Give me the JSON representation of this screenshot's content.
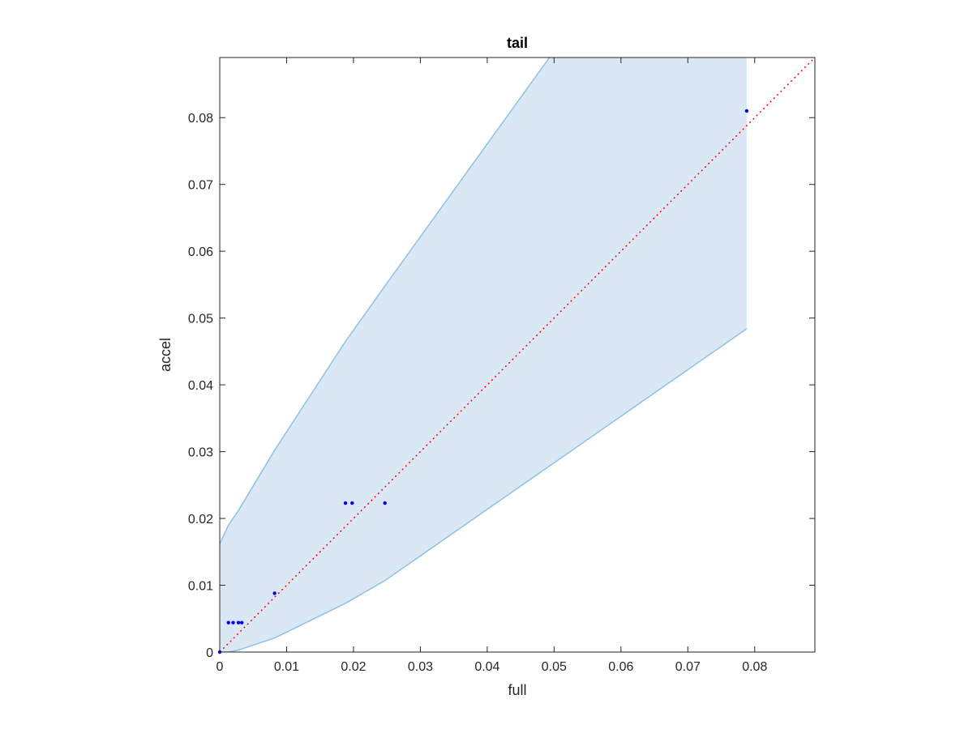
{
  "chart_data": {
    "type": "scatter",
    "title": "tail",
    "xlabel": "full",
    "ylabel": "accel",
    "xlim": [
      0,
      0.089
    ],
    "ylim": [
      0,
      0.089
    ],
    "xticks": [
      0,
      0.01,
      0.02,
      0.03,
      0.04,
      0.05,
      0.06,
      0.07,
      0.08
    ],
    "yticks": [
      0,
      0.01,
      0.02,
      0.03,
      0.04,
      0.05,
      0.06,
      0.07,
      0.08
    ],
    "xtick_labels": [
      "0",
      "0.01",
      "0.02",
      "0.03",
      "0.04",
      "0.05",
      "0.06",
      "0.07",
      "0.08"
    ],
    "ytick_labels": [
      "0",
      "0.01",
      "0.02",
      "0.03",
      "0.04",
      "0.05",
      "0.06",
      "0.07",
      "0.08"
    ],
    "grid": false,
    "points": {
      "color": "#0000ff",
      "x": [
        0.0,
        0.0013,
        0.002,
        0.0028,
        0.0033,
        0.0082,
        0.0188,
        0.0198,
        0.0247,
        0.0788
      ],
      "y": [
        0.0,
        0.0044,
        0.0044,
        0.0044,
        0.0044,
        0.0088,
        0.0223,
        0.0223,
        0.0223,
        0.081
      ]
    },
    "reference_line": {
      "style": "dotted",
      "color": "#ff0000",
      "x": [
        0,
        0.089
      ],
      "y": [
        0,
        0.089
      ]
    },
    "band": {
      "fill_color": "#d9e8f4",
      "edge_color": "#8fc1e3",
      "x": [
        0,
        0.0013,
        0.0028,
        0.0082,
        0.0188,
        0.0247,
        0.0788
      ],
      "upper": [
        0.0162,
        0.019,
        0.0212,
        0.0302,
        0.0465,
        0.0548,
        0.13
      ],
      "lower": [
        0.0,
        0.0,
        0.0003,
        0.0021,
        0.0073,
        0.0107,
        0.0484
      ]
    }
  }
}
